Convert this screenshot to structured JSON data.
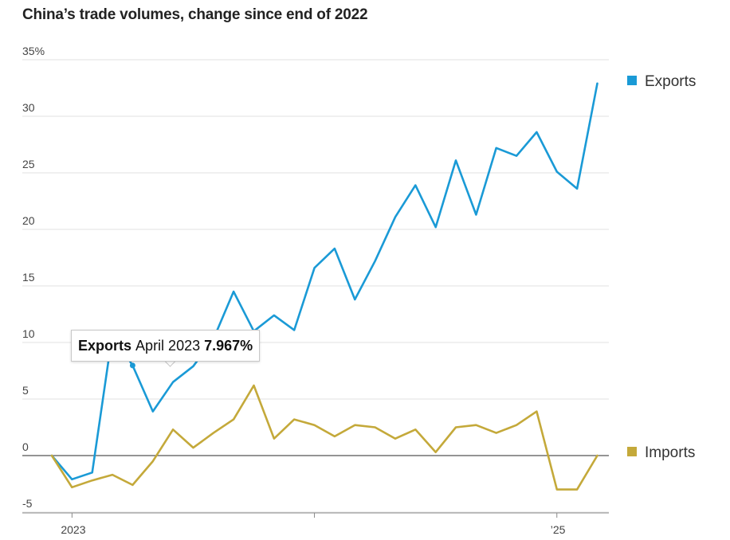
{
  "title": "China’s trade volumes, change since end of 2022",
  "chart_data": {
    "type": "line",
    "x": [
      "2022-12",
      "2023-01",
      "2023-02",
      "2023-03",
      "2023-04",
      "2023-05",
      "2023-06",
      "2023-07",
      "2023-08",
      "2023-09",
      "2023-10",
      "2023-11",
      "2023-12",
      "2024-01",
      "2024-02",
      "2024-03",
      "2024-04",
      "2024-05",
      "2024-06",
      "2024-07",
      "2024-08",
      "2024-09",
      "2024-10",
      "2024-11",
      "2024-12",
      "2025-01",
      "2025-02",
      "2025-03"
    ],
    "x_tick_labels": [
      "2023",
      "",
      "’25"
    ],
    "y_tick_labels": [
      "35%",
      "30",
      "25",
      "20",
      "15",
      "10",
      "5",
      "0",
      "-5"
    ],
    "y_ticks": [
      35,
      30,
      25,
      20,
      15,
      10,
      5,
      0,
      -5
    ],
    "ylim": [
      -5,
      35
    ],
    "series": [
      {
        "name": "Exports",
        "color": "#1a9ad6",
        "values": [
          0.0,
          -2.1,
          -1.5,
          10.8,
          7.967,
          3.9,
          6.5,
          7.9,
          10.3,
          14.5,
          11.0,
          12.4,
          11.1,
          16.6,
          18.3,
          13.8,
          17.2,
          21.1,
          23.9,
          20.2,
          26.1,
          21.3,
          27.2,
          26.5,
          28.6,
          25.1,
          23.6,
          32.9
        ]
      },
      {
        "name": "Imports",
        "color": "#c4a93a",
        "values": [
          0.0,
          -2.8,
          -2.2,
          -1.7,
          -2.6,
          -0.5,
          2.3,
          0.7,
          2.0,
          3.2,
          6.2,
          1.5,
          3.2,
          2.7,
          1.7,
          2.7,
          2.5,
          1.5,
          2.3,
          0.3,
          2.5,
          2.7,
          2.0,
          2.7,
          3.9,
          -3.0,
          -3.0,
          0.0
        ]
      }
    ],
    "legend": "right",
    "grid": true,
    "tooltip": {
      "series": "Exports",
      "date": "April 2023",
      "value": "7.967%",
      "index": 4
    }
  }
}
